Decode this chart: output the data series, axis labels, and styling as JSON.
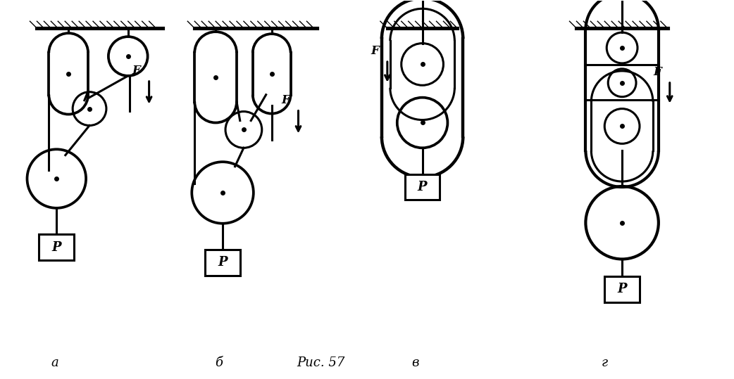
{
  "bg_color": "#ffffff",
  "line_color": "#000000",
  "lw": 2.2,
  "fig_width": 10.42,
  "fig_height": 5.39,
  "title": "Рис. 57",
  "labels": [
    "а",
    "б",
    "в",
    "г"
  ]
}
